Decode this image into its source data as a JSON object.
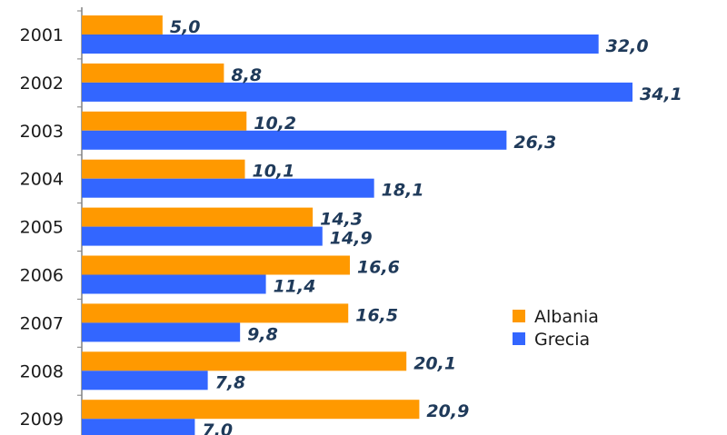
{
  "chart_data": {
    "type": "bar",
    "orientation": "horizontal",
    "categories": [
      "2001",
      "2002",
      "2003",
      "2004",
      "2005",
      "2006",
      "2007",
      "2008",
      "2009"
    ],
    "series": [
      {
        "name": "Albania",
        "color": "#FF9900",
        "values": [
          5.0,
          8.8,
          10.2,
          10.1,
          14.3,
          16.6,
          16.5,
          20.1,
          20.9
        ],
        "labels": [
          "5,0",
          "8,8",
          "10,2",
          "10,1",
          "14,3",
          "16,6",
          "16,5",
          "20,1",
          "20,9"
        ]
      },
      {
        "name": "Grecia",
        "color": "#3366FF",
        "values": [
          32.0,
          34.1,
          26.3,
          18.1,
          14.9,
          11.4,
          9.8,
          7.8,
          7.0
        ],
        "labels": [
          "32,0",
          "34,1",
          "26,3",
          "18,1",
          "14,9",
          "11,4",
          "9,8",
          "7,8",
          "7,0"
        ]
      }
    ],
    "xlim": [
      0,
      34.1
    ],
    "grid": false,
    "legend_position": "right",
    "title": "",
    "xlabel": "",
    "ylabel": ""
  }
}
